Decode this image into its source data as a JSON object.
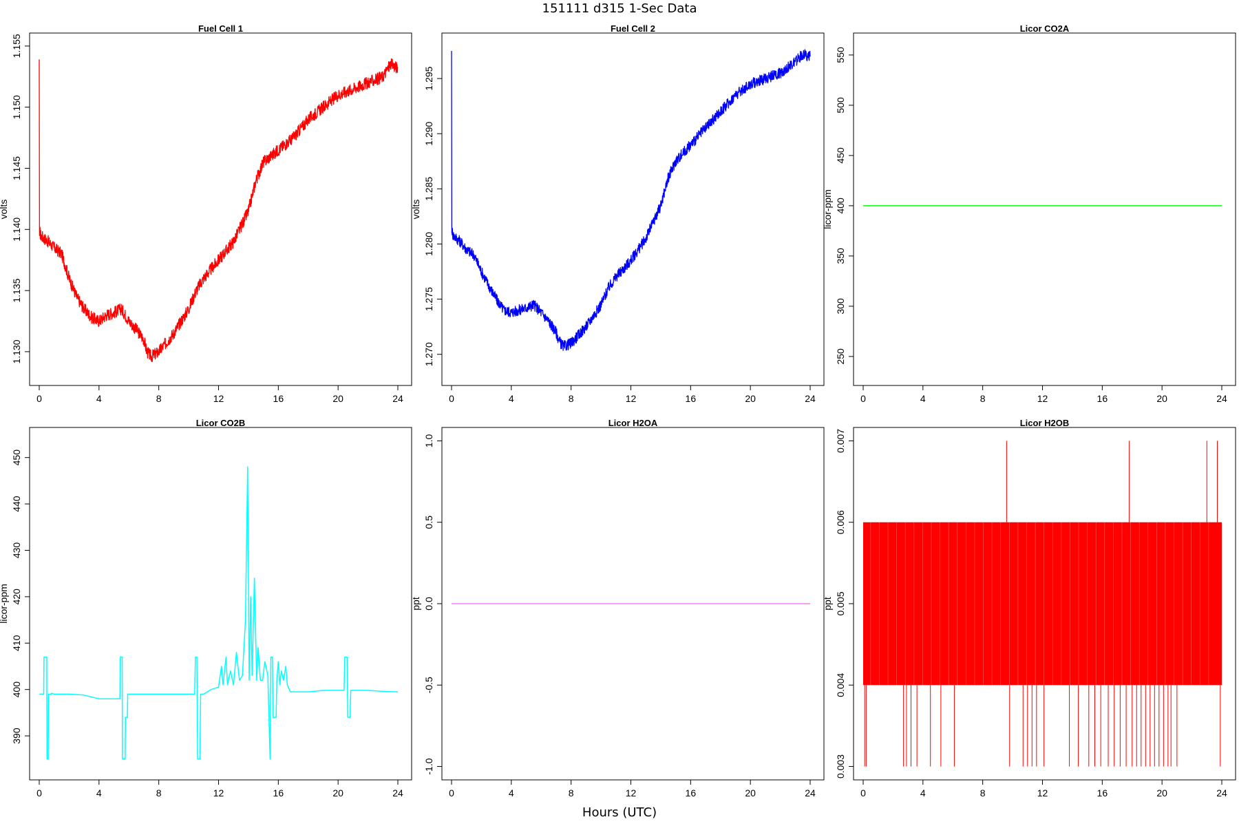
{
  "figure": {
    "title": "151111   d315   1-Sec Data",
    "xlabel": "Hours (UTC)"
  },
  "chart_data": [
    {
      "type": "line",
      "title": "Fuel Cell 1",
      "ylabel": "volts",
      "xlim": [
        0,
        24
      ],
      "ylim": [
        1.1278,
        1.1555
      ],
      "xticks": [
        0,
        4,
        8,
        12,
        16,
        20,
        24
      ],
      "yticks": [
        1.13,
        1.135,
        1.14,
        1.145,
        1.15,
        1.155
      ],
      "ytick_labels": [
        "1.130",
        "1.135",
        "1.140",
        "1.145",
        "1.150",
        "1.155"
      ],
      "color": "#ff0000",
      "noise": 0.0005,
      "series": [
        {
          "x": [
            0,
            0.02,
            0.04,
            0.1,
            0.6,
            1.0,
            1.5,
            2.0,
            2.5,
            3.0,
            3.5,
            4.0,
            4.5,
            5.0,
            5.5,
            6.0,
            6.5,
            7.0,
            7.2,
            7.5,
            8.0,
            9.0,
            10.0,
            10.5,
            11.0,
            12.0,
            13.0,
            14.0,
            14.5,
            15.0,
            16.0,
            17.0,
            18.0,
            19.0,
            20.0,
            21.0,
            22.0,
            23.0,
            23.5,
            24.0
          ],
          "y": [
            1.1539,
            1.1395,
            1.1398,
            1.1395,
            1.139,
            1.1385,
            1.138,
            1.136,
            1.1345,
            1.1335,
            1.1328,
            1.1325,
            1.133,
            1.1332,
            1.1335,
            1.1325,
            1.1318,
            1.131,
            1.13,
            1.1296,
            1.13,
            1.1315,
            1.1335,
            1.135,
            1.136,
            1.1375,
            1.139,
            1.1415,
            1.144,
            1.1455,
            1.1465,
            1.1475,
            1.149,
            1.15,
            1.151,
            1.1515,
            1.152,
            1.1525,
            1.1535,
            1.1532
          ]
        }
      ]
    },
    {
      "type": "line",
      "title": "Fuel Cell 2",
      "ylabel": "volts",
      "xlim": [
        0,
        24
      ],
      "ylim": [
        1.2678,
        1.2985
      ],
      "xticks": [
        0,
        4,
        8,
        12,
        16,
        20,
        24
      ],
      "yticks": [
        1.27,
        1.275,
        1.28,
        1.285,
        1.29,
        1.295
      ],
      "ytick_labels": [
        "1.270",
        "1.275",
        "1.280",
        "1.285",
        "1.290",
        "1.295"
      ],
      "color": "#0000ff",
      "noise": 0.0005,
      "series": [
        {
          "x": [
            0,
            0.02,
            0.04,
            0.1,
            0.6,
            1.0,
            1.5,
            2.0,
            2.5,
            3.0,
            3.5,
            4.0,
            4.5,
            5.0,
            5.5,
            6.0,
            6.5,
            7.0,
            7.2,
            7.5,
            8.0,
            9.0,
            10.0,
            10.5,
            11.0,
            12.0,
            13.0,
            14.0,
            14.5,
            15.0,
            16.0,
            17.0,
            18.0,
            19.0,
            20.0,
            21.0,
            22.0,
            23.0,
            23.5,
            24.0
          ],
          "y": [
            1.2975,
            1.281,
            1.2812,
            1.2808,
            1.2802,
            1.2795,
            1.279,
            1.2775,
            1.2762,
            1.275,
            1.274,
            1.2738,
            1.274,
            1.2742,
            1.2745,
            1.2738,
            1.273,
            1.272,
            1.2712,
            1.2707,
            1.271,
            1.2725,
            1.2745,
            1.276,
            1.277,
            1.2785,
            1.2805,
            1.2835,
            1.286,
            1.2875,
            1.289,
            1.2905,
            1.292,
            1.2935,
            1.2945,
            1.295,
            1.2955,
            1.2965,
            1.2972,
            1.297
          ]
        }
      ]
    },
    {
      "type": "line",
      "title": "Licor CO2A",
      "ylabel": "licor-ppm",
      "xlim": [
        0,
        24
      ],
      "ylim": [
        228,
        565
      ],
      "xticks": [
        0,
        4,
        8,
        12,
        16,
        20,
        24
      ],
      "yticks": [
        250,
        300,
        350,
        400,
        450,
        500,
        550
      ],
      "ytick_labels": [
        "250",
        "300",
        "350",
        "400",
        "450",
        "500",
        "550"
      ],
      "color": "#00ff00",
      "noise": 0,
      "series": [
        {
          "x": [
            0,
            24
          ],
          "y": [
            400,
            400
          ]
        }
      ]
    },
    {
      "type": "line",
      "title": "Licor CO2B",
      "ylabel": "licor-ppm",
      "xlim": [
        0,
        24
      ],
      "ylim": [
        382,
        455
      ],
      "xticks": [
        0,
        4,
        8,
        12,
        16,
        20,
        24
      ],
      "yticks": [
        390,
        400,
        410,
        420,
        430,
        440,
        450
      ],
      "ytick_labels": [
        "390",
        "400",
        "410",
        "420",
        "430",
        "440",
        "450"
      ],
      "color": "#00ffff",
      "noise": 0,
      "series": [
        {
          "x": [
            0,
            0.3,
            0.32,
            0.5,
            0.52,
            0.6,
            0.62,
            0.8,
            0.82,
            1.0,
            2.0,
            3.0,
            4.0,
            5.0,
            5.4,
            5.42,
            5.55,
            5.57,
            5.75,
            5.77,
            5.9,
            5.92,
            6.1,
            8.0,
            10.0,
            10.4,
            10.45,
            10.55,
            10.6,
            10.75,
            10.8,
            11.0,
            11.5,
            12.0,
            12.2,
            12.3,
            12.5,
            12.6,
            12.8,
            13.0,
            13.2,
            13.4,
            13.6,
            13.8,
            13.95,
            14.05,
            14.15,
            14.25,
            14.4,
            14.55,
            14.65,
            14.8,
            14.95,
            15.1,
            15.3,
            15.45,
            15.5,
            15.6,
            15.65,
            15.85,
            15.9,
            16.0,
            16.1,
            16.2,
            16.35,
            16.5,
            16.6,
            16.8,
            17.0,
            18.0,
            19.0,
            20.0,
            20.4,
            20.45,
            20.6,
            20.65,
            20.8,
            20.85,
            21.0,
            21.2,
            22.0,
            23.0,
            24.0
          ],
          "y": [
            399,
            399,
            407,
            407,
            385,
            385,
            399,
            399,
            399.2,
            399,
            399,
            398.8,
            398,
            398,
            398,
            407,
            407,
            385,
            385,
            394,
            394,
            399,
            399,
            399,
            399,
            399,
            407,
            407,
            385,
            385,
            399,
            399,
            400,
            400.5,
            405,
            401,
            407,
            401,
            404,
            401,
            408,
            402,
            403,
            415,
            448,
            402,
            420,
            403,
            424,
            402,
            409,
            402,
            402,
            406,
            403,
            385,
            407,
            407,
            394,
            394,
            402,
            406,
            401,
            404,
            402,
            405,
            401,
            399.5,
            399.5,
            399.5,
            399.8,
            399.8,
            399.8,
            407,
            407,
            394,
            394,
            399.8,
            399.8,
            399.8,
            399.8,
            399.6,
            399.5
          ]
        }
      ]
    },
    {
      "type": "line",
      "title": "Licor H2OA",
      "ylabel": "ppt",
      "xlim": [
        0,
        24
      ],
      "ylim": [
        -1.04,
        1.04
      ],
      "xticks": [
        0,
        4,
        8,
        12,
        16,
        20,
        24
      ],
      "yticks": [
        -1.0,
        -0.5,
        0.0,
        0.5,
        1.0
      ],
      "ytick_labels": [
        "-1.0",
        "-0.5",
        "0.0",
        "0.5",
        "1.0"
      ],
      "color": "#ee82ee",
      "noise": 0,
      "series": [
        {
          "x": [
            0,
            24
          ],
          "y": [
            0,
            0
          ]
        }
      ]
    },
    {
      "type": "line",
      "title": "Licor H2OB",
      "ylabel": "ppt",
      "xlim": [
        0,
        24
      ],
      "ylim": [
        0.00292,
        0.00708
      ],
      "xticks": [
        0,
        4,
        8,
        12,
        16,
        20,
        24
      ],
      "yticks": [
        0.003,
        0.004,
        0.005,
        0.006,
        0.007
      ],
      "ytick_labels": [
        "0.003",
        "0.004",
        "0.005",
        "0.006",
        "0.007"
      ],
      "color": "#ff0000",
      "noise": 0,
      "band": [
        0.004,
        0.006
      ],
      "spikes_high": [
        9.6,
        17.8,
        23.0,
        23.7
      ],
      "spikes_low": [
        0.1,
        0.2,
        2.7,
        2.9,
        3.2,
        3.6,
        4.5,
        5.2,
        6.1,
        9.8,
        10.7,
        11.0,
        11.3,
        11.6,
        12.1,
        13.8,
        14.4,
        15.1,
        15.5,
        15.9,
        16.4,
        16.8,
        17.2,
        17.6,
        18.0,
        18.3,
        18.6,
        18.9,
        19.2,
        19.5,
        19.8,
        20.1,
        20.4,
        20.6,
        21.0,
        23.9
      ]
    }
  ]
}
